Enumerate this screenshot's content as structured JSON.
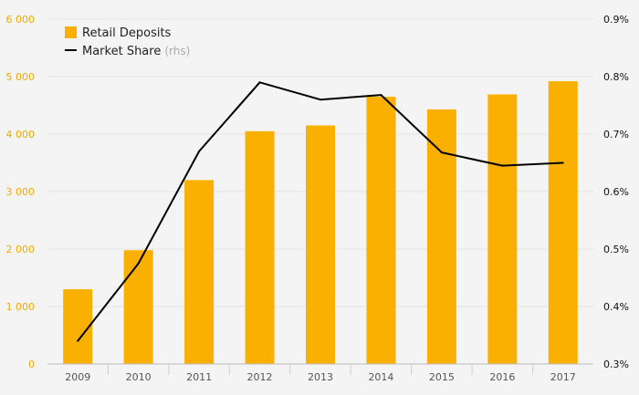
{
  "chart_data": {
    "type": "bar",
    "categories": [
      "2009",
      "2010",
      "2011",
      "2012",
      "2013",
      "2014",
      "2015",
      "2016",
      "2017"
    ],
    "series": [
      {
        "name": "Retail Deposits",
        "type": "bar",
        "axis": "left",
        "values": [
          1300,
          1980,
          3200,
          4050,
          4150,
          4650,
          4430,
          4690,
          4920
        ]
      },
      {
        "name": "Market Share",
        "type": "line",
        "axis": "right",
        "values": [
          0.34,
          0.475,
          0.67,
          0.79,
          0.76,
          0.768,
          0.668,
          0.645,
          0.65
        ]
      }
    ],
    "ylim_left": [
      0,
      6000
    ],
    "yticks_left": [
      "0",
      "1 000",
      "2 000",
      "3 000",
      "4 000",
      "5 000",
      "6 000"
    ],
    "ylim_right": [
      0.3,
      0.9
    ],
    "yticks_right": [
      "0.3%",
      "0.4%",
      "0.5%",
      "0.6%",
      "0.7%",
      "0.8%",
      "0.9%"
    ],
    "legend": {
      "position": "top-left",
      "bar_label": "Retail Deposits",
      "line_label": "Market Share",
      "line_suffix": "(rhs)"
    },
    "grid": "horizontal"
  },
  "colors": {
    "bar": "#F9B000",
    "line": "#000000",
    "left_tick": "#F2A900",
    "grid": "#e4e4e4",
    "background": "#f4f4f4"
  }
}
